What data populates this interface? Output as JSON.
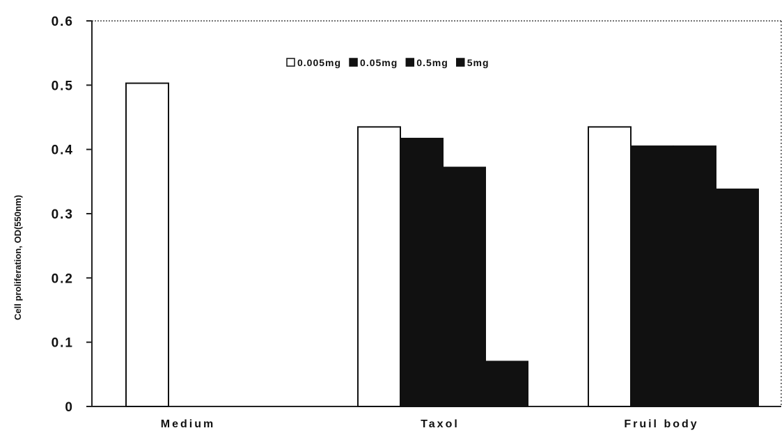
{
  "chart_data": {
    "type": "bar",
    "ylabel": "Cell proliferation, OD(550nm)",
    "xlabel": "",
    "ylim": [
      0,
      0.6
    ],
    "yticks": [
      "0",
      "0.1",
      "0.2",
      "0.3",
      "0.4",
      "0.5",
      "0.6"
    ],
    "categories": [
      "Medium",
      "Taxol",
      "Fruil body"
    ],
    "series": [
      {
        "name": "0.005mg",
        "values": [
          0.503,
          0.435,
          0.435
        ]
      },
      {
        "name": "0.05mg",
        "values": [
          null,
          0.417,
          0.405
        ]
      },
      {
        "name": "0.5mg",
        "values": [
          null,
          0.372,
          0.405
        ]
      },
      {
        "name": "5mg",
        "values": [
          null,
          0.07,
          0.338
        ]
      }
    ],
    "legend_position": "top-center",
    "grid": false,
    "colors": {
      "open": "#ffffff",
      "filled": "#111111",
      "axis": "#222222"
    }
  }
}
